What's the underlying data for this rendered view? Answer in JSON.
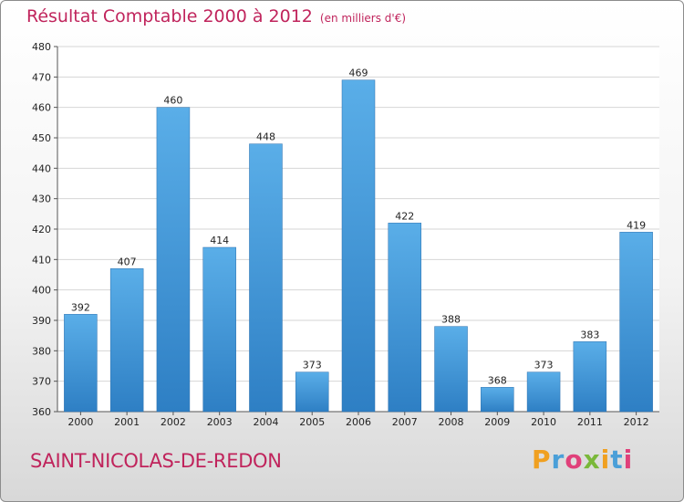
{
  "header": {
    "title": "Résultat Comptable 2000 à 2012",
    "unit": "(en milliers d'€)"
  },
  "footer": {
    "place": "SAINT-NICOLAS-DE-REDON",
    "brand": "Proxiti"
  },
  "colors": {
    "title": "#c0245c",
    "bar_top": "#5aaee8",
    "bar_bottom": "#2e7fc4"
  },
  "chart_data": {
    "type": "bar",
    "title": "Résultat Comptable 2000 à 2012",
    "subtitle": "(en milliers d'€)",
    "xlabel": "",
    "ylabel": "",
    "categories": [
      "2000",
      "2001",
      "2002",
      "2003",
      "2004",
      "2005",
      "2006",
      "2007",
      "2008",
      "2009",
      "2010",
      "2011",
      "2012"
    ],
    "values": [
      392,
      407,
      460,
      414,
      448,
      373,
      469,
      422,
      388,
      368,
      373,
      383,
      419
    ],
    "ylim": [
      360,
      480
    ],
    "yticks": [
      360,
      370,
      380,
      390,
      400,
      410,
      420,
      430,
      440,
      450,
      460,
      470,
      480
    ],
    "grid": true,
    "data_labels": true
  }
}
